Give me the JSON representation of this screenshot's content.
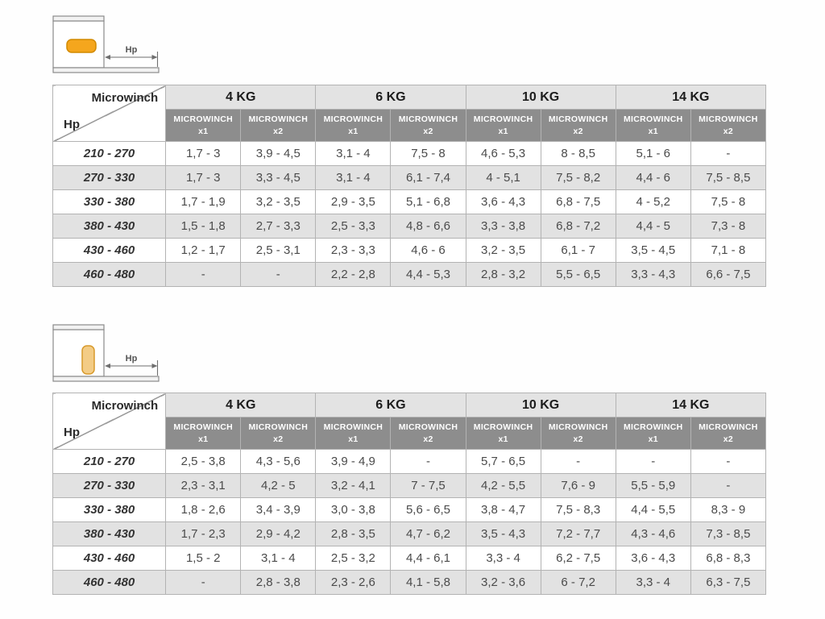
{
  "colors": {
    "group_header_bg": "#e3e3e3",
    "subheader_bg": "#8d8d8d",
    "subheader_text": "#ffffff",
    "row_alt_bg": "#e2e2e2",
    "border": "#b3b3b3",
    "winch_horizontal_fill": "#f5a61d",
    "winch_horizontal_stroke": "#d28a00",
    "winch_vertical_fill": "#f3cc86",
    "winch_vertical_stroke": "#d89a2b",
    "diagram_line": "#8a8a8a",
    "diagram_text": "#555555"
  },
  "corner": {
    "top_label": "Microwinch",
    "bottom_label": "Hp"
  },
  "groups": [
    "4 KG",
    "6 KG",
    "10 KG",
    "14 KG"
  ],
  "sub_line1": "MICROWINCH",
  "sub_variants": [
    "x1",
    "x2"
  ],
  "diagram_label": "Hp",
  "tables": [
    {
      "name": "microwinch-horizontal-mount",
      "rows": [
        {
          "hp": "210 - 270",
          "values": [
            "1,7 - 3",
            "3,9 - 4,5",
            "3,1 - 4",
            "7,5 - 8",
            "4,6 - 5,3",
            "8 - 8,5",
            "5,1 - 6",
            "-"
          ]
        },
        {
          "hp": "270 - 330",
          "values": [
            "1,7 - 3",
            "3,3 - 4,5",
            "3,1 - 4",
            "6,1 - 7,4",
            "4 - 5,1",
            "7,5 - 8,2",
            "4,4 - 6",
            "7,5 - 8,5"
          ]
        },
        {
          "hp": "330 - 380",
          "values": [
            "1,7 - 1,9",
            "3,2 - 3,5",
            "2,9 - 3,5",
            "5,1 - 6,8",
            "3,6 - 4,3",
            "6,8 - 7,5",
            "4 - 5,2",
            "7,5 - 8"
          ]
        },
        {
          "hp": "380 - 430",
          "values": [
            "1,5 - 1,8",
            "2,7 - 3,3",
            "2,5 - 3,3",
            "4,8 - 6,6",
            "3,3 - 3,8",
            "6,8 - 7,2",
            "4,4 - 5",
            "7,3 - 8"
          ]
        },
        {
          "hp": "430 - 460",
          "values": [
            "1,2 - 1,7",
            "2,5 - 3,1",
            "2,3 - 3,3",
            "4,6 - 6",
            "3,2 - 3,5",
            "6,1 - 7",
            "3,5 - 4,5",
            "7,1 - 8"
          ]
        },
        {
          "hp": "460 - 480",
          "values": [
            "-",
            "-",
            "2,2 - 2,8",
            "4,4 - 5,3",
            "2,8 - 3,2",
            "5,5 - 6,5",
            "3,3 - 4,3",
            "6,6 - 7,5"
          ]
        }
      ]
    },
    {
      "name": "microwinch-vertical-mount",
      "rows": [
        {
          "hp": "210 - 270",
          "values": [
            "2,5 - 3,8",
            "4,3 - 5,6",
            "3,9 - 4,9",
            "-",
            "5,7 - 6,5",
            "-",
            "-",
            "-"
          ]
        },
        {
          "hp": "270 - 330",
          "values": [
            "2,3 - 3,1",
            "4,2 - 5",
            "3,2 - 4,1",
            "7 - 7,5",
            "4,2 - 5,5",
            "7,6 - 9",
            "5,5 - 5,9",
            "-"
          ]
        },
        {
          "hp": "330 - 380",
          "values": [
            "1,8 - 2,6",
            "3,4 - 3,9",
            "3,0 - 3,8",
            "5,6 - 6,5",
            "3,8 - 4,7",
            "7,5 - 8,3",
            "4,4 - 5,5",
            "8,3 - 9"
          ]
        },
        {
          "hp": "380 - 430",
          "values": [
            "1,7 - 2,3",
            "2,9 - 4,2",
            "2,8 - 3,5",
            "4,7 - 6,2",
            "3,5 - 4,3",
            "7,2 - 7,7",
            "4,3 - 4,6",
            "7,3 - 8,5"
          ]
        },
        {
          "hp": "430 - 460",
          "values": [
            "1,5 - 2",
            "3,1 - 4",
            "2,5 - 3,2",
            "4,4 - 6,1",
            "3,3 - 4",
            "6,2 - 7,5",
            "3,6 - 4,3",
            "6,8 - 8,3"
          ]
        },
        {
          "hp": "460 - 480",
          "values": [
            "-",
            "2,8 - 3,8",
            "2,3 - 2,6",
            "4,1 - 5,8",
            "3,2 - 3,6",
            "6 - 7,2",
            "3,3 - 4",
            "6,3 - 7,5"
          ]
        }
      ]
    }
  ]
}
